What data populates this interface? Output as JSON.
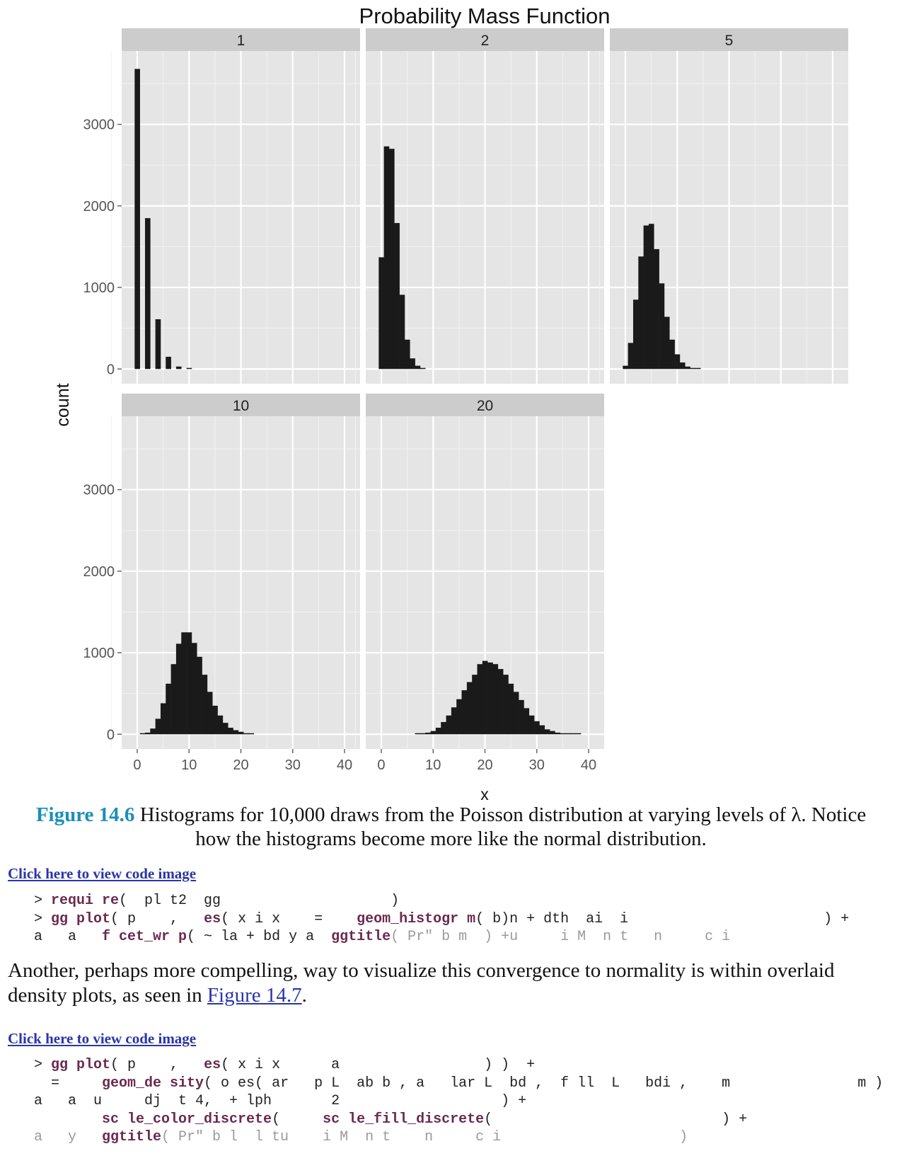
{
  "chart_data": {
    "type": "bar",
    "title": "Probability Mass Function",
    "xlabel": "x",
    "ylabel": "count",
    "xlim": [
      -3,
      43
    ],
    "ylim": [
      -180,
      3900
    ],
    "x_ticks": [
      0,
      10,
      20,
      30,
      40
    ],
    "y_ticks": [
      0,
      1000,
      2000,
      3000
    ],
    "facets": [
      {
        "label": "1",
        "x": [
          0,
          2,
          4,
          6,
          8,
          10
        ],
        "values": [
          3680,
          1850,
          610,
          150,
          30,
          5
        ]
      },
      {
        "label": "2",
        "x": [
          0,
          1,
          2,
          3,
          4,
          5,
          6,
          7,
          8
        ],
        "values": [
          1370,
          2730,
          2700,
          1790,
          910,
          360,
          130,
          40,
          10
        ]
      },
      {
        "label": "5",
        "x": [
          0,
          1,
          2,
          3,
          4,
          5,
          6,
          7,
          8,
          9,
          10,
          11,
          12,
          13,
          14
        ],
        "values": [
          40,
          320,
          850,
          1380,
          1760,
          1780,
          1470,
          1050,
          640,
          360,
          180,
          80,
          30,
          10,
          5
        ]
      },
      {
        "label": "10",
        "x": [
          1,
          2,
          3,
          4,
          5,
          6,
          7,
          8,
          9,
          10,
          11,
          12,
          13,
          14,
          15,
          16,
          17,
          18,
          19,
          20,
          21,
          22
        ],
        "values": [
          5,
          20,
          70,
          190,
          380,
          620,
          860,
          1110,
          1250,
          1250,
          1120,
          950,
          730,
          520,
          350,
          230,
          140,
          80,
          50,
          30,
          10,
          5
        ]
      },
      {
        "label": "20",
        "x": [
          7,
          8,
          9,
          10,
          11,
          12,
          13,
          14,
          15,
          16,
          17,
          18,
          19,
          20,
          21,
          22,
          23,
          24,
          25,
          26,
          27,
          28,
          29,
          30,
          31,
          32,
          33,
          34,
          35,
          36,
          37,
          38
        ],
        "values": [
          5,
          10,
          20,
          40,
          80,
          150,
          230,
          330,
          430,
          540,
          640,
          730,
          860,
          900,
          880,
          860,
          800,
          730,
          620,
          520,
          420,
          320,
          230,
          160,
          110,
          60,
          40,
          20,
          10,
          5,
          5,
          5
        ]
      }
    ]
  },
  "caption": {
    "label": "Figure 14.6",
    "text": "Histograms for 10,000 draws from the Poisson distribution at varying levels of λ. Notice how the histograms become more like the normal distribution."
  },
  "link1": "Click here to view code image",
  "code1": {
    "l1_prompt": "> ",
    "l1_kw": "requi re",
    "l1_rest": "(  pl t2  gg                    )",
    "l2_prompt": "> ",
    "l2_kw": "gg plot",
    "l2_a": "( p    ,   ",
    "l2_kw2": "es",
    "l2_b": "( x i x    =    ",
    "l2_kw3": "geom_histogr m",
    "l2_c": "( b)n + dth  ai  i                       ) +",
    "l3_a": "a   a   ",
    "l3_kw": "f cet_wr p",
    "l3_b": "( ~ la + bd y a  ",
    "l3_kw2": "ggtitle",
    "l3_faint": "( Pr\" b m  ) +u     i M  n t   n     c i                    )"
  },
  "para": {
    "text": "Another, perhaps more compelling, way to visualize this convergence to normality is within overlaid density plots, as seen in ",
    "link": "Figure 14.7",
    "end": "."
  },
  "link2": "Click here to view code image",
  "code2": {
    "l1_prompt": "> ",
    "l1_kw": "gg plot",
    "l1_a": "( p    ,   ",
    "l1_kw2": "es",
    "l1_b": "( x i x      a                 ) )  +",
    "l2_a": "  =     ",
    "l2_kw": "geom_de sity",
    "l2_b": "( o es( ar   p L  ab b , a   lar L  bd ,  f ll  L   bdi ,    m               m )",
    "l3_a": "a   a  u     dj  t 4,  + lph       2                   ) +",
    "l4_a": "        ",
    "l4_kw": "sc le_color_discrete",
    "l4_b": "(     ",
    "l4_kw2": "sc le_fill_discrete",
    "l4_c": "(                           ) +",
    "l5_a": "a   y   ",
    "l5_kw": "ggtitle",
    "l5_faint": "( Pr\" b l  l tu    i M  n t    n     c i                     )"
  },
  "colors": {
    "panel_bg": "#e5e5e5",
    "strip_bg": "#cccccc",
    "grid_major": "#ffffff",
    "bar_fill": "#1a1a1a",
    "caption_label": "#1a8fb8",
    "link": "#2a35a8",
    "code_keyword": "#6b2a4f"
  }
}
